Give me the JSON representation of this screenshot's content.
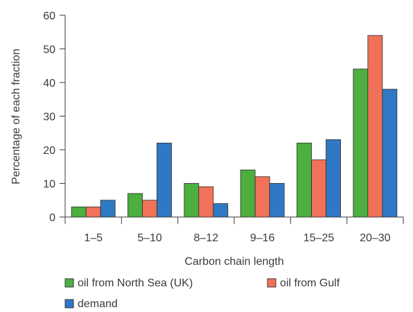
{
  "chart_data": {
    "type": "bar",
    "xlabel": "Carbon chain length",
    "ylabel": "Percentage of each fraction",
    "ylim": [
      0,
      60
    ],
    "yticks": [
      0,
      10,
      20,
      30,
      40,
      50,
      60
    ],
    "categories": [
      "1–5",
      "5–10",
      "8–12",
      "9–16",
      "15–25",
      "20–30"
    ],
    "series": [
      {
        "name": "oil from North Sea (UK)",
        "color": "#4caf3f",
        "values": [
          3,
          7,
          10,
          14,
          22,
          44
        ]
      },
      {
        "name": "oil from Gulf",
        "color": "#f07259",
        "values": [
          3,
          5,
          9,
          12,
          17,
          54
        ]
      },
      {
        "name": "demand",
        "color": "#2f79c4",
        "values": [
          5,
          22,
          4,
          10,
          23,
          38
        ]
      }
    ],
    "grid": false,
    "legend_position": "bottom"
  }
}
